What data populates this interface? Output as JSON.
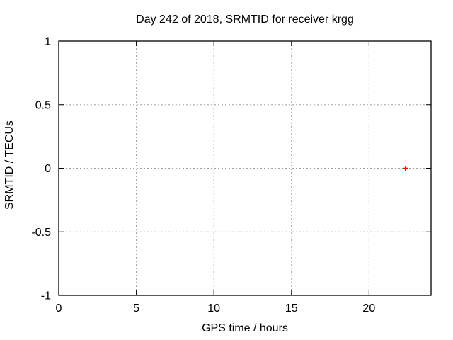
{
  "chart_data": {
    "type": "scatter",
    "title": "Day 242 of 2018, SRMTID for receiver krgg",
    "xlabel": "GPS time / hours",
    "ylabel": "SRMTID / TECUs",
    "xlim": [
      0,
      24
    ],
    "ylim": [
      -1,
      1
    ],
    "xticks": [
      {
        "v": 0,
        "label": "0"
      },
      {
        "v": 5,
        "label": "5"
      },
      {
        "v": 10,
        "label": "10"
      },
      {
        "v": 15,
        "label": "15"
      },
      {
        "v": 20,
        "label": "20"
      }
    ],
    "yticks": [
      {
        "v": -1,
        "label": "-1"
      },
      {
        "v": -0.5,
        "label": "-0.5"
      },
      {
        "v": 0,
        "label": "0"
      },
      {
        "v": 0.5,
        "label": "0.5"
      },
      {
        "v": 1,
        "label": "1"
      }
    ],
    "grid": true,
    "legend": "none",
    "series": [
      {
        "name": "SRMTID",
        "marker": "plus",
        "color": "#ff0000",
        "points": [
          {
            "x": 22.35,
            "y": 0
          }
        ]
      }
    ],
    "colors": {
      "background": "#ffffff",
      "border": "#000000",
      "grid": "#9e9e9e",
      "text": "#000000"
    }
  }
}
